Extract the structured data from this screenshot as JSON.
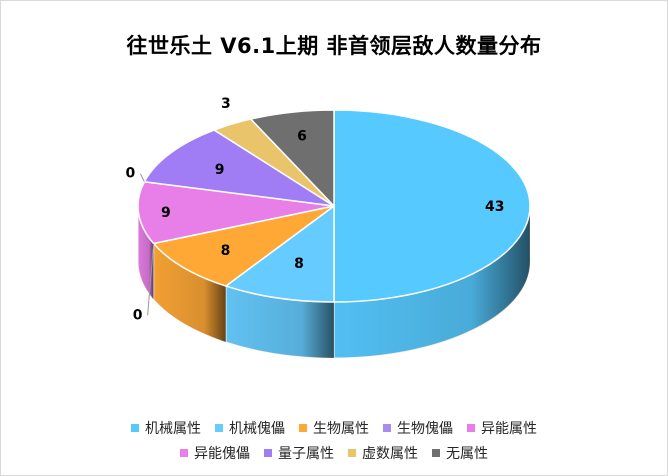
{
  "chart_data": {
    "type": "pie",
    "title": "往世乐土 V6.1上期 非首领层敌人数量分布",
    "categories": [
      "机械属性",
      "机械傀儡",
      "生物属性",
      "生物傀儡",
      "异能属性",
      "异能傀儡",
      "量子属性",
      "虚数属性",
      "无属性"
    ],
    "values": [
      43,
      8,
      8,
      0,
      9,
      0,
      9,
      3,
      6
    ],
    "colors": [
      "#56c9ff",
      "#66ccff",
      "#ffa836",
      "#a98af0",
      "#e87fe9",
      "#e87fe9",
      "#a07df5",
      "#eac46a",
      "#6f6f6f"
    ],
    "legend": "bottom"
  }
}
